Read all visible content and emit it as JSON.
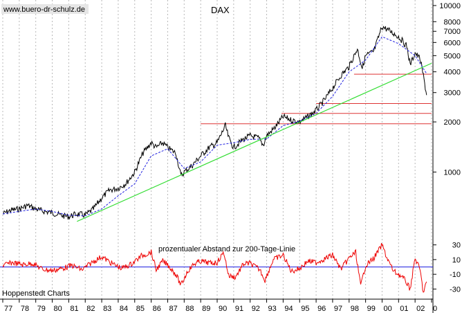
{
  "watermark": "www.buero-dr-schulz.de",
  "credit": "Hoppenstedt Charts",
  "chart_data": [
    {
      "type": "line",
      "title": "DAX",
      "yscale": "log",
      "ylim": [
        420,
        10000
      ],
      "y_tick_labels": [
        "10000",
        "8000",
        "7000",
        "6000",
        "5000",
        "4000",
        "3000",
        "2000",
        "1000"
      ],
      "y_ticks": [
        10000,
        8000,
        7000,
        6000,
        5000,
        4000,
        3000,
        2000,
        1000
      ],
      "grid": "vertical dotted at each year",
      "series": [
        {
          "kind": "price",
          "color": "#000000",
          "x": [
            1977.0,
            1977.5,
            1978.0,
            1978.5,
            1979.0,
            1979.5,
            1980.0,
            1980.5,
            1981.0,
            1981.5,
            1982.0,
            1982.5,
            1983.0,
            1983.5,
            1984.0,
            1984.5,
            1985.0,
            1985.5,
            1986.0,
            1986.3,
            1986.7,
            1987.0,
            1987.5,
            1987.8,
            1988.0,
            1988.5,
            1989.0,
            1989.5,
            1990.0,
            1990.5,
            1990.7,
            1991.0,
            1991.5,
            1992.0,
            1992.5,
            1992.8,
            1993.0,
            1993.5,
            1994.0,
            1994.5,
            1995.0,
            1995.5,
            1996.0,
            1996.5,
            1997.0,
            1997.5,
            1998.0,
            1998.5,
            1998.8,
            1999.0,
            1999.5,
            2000.0,
            2000.5,
            2001.0,
            2001.5,
            2001.7,
            2002.0,
            2002.3,
            2002.5,
            2002.7
          ],
          "values": [
            560,
            590,
            600,
            630,
            600,
            580,
            570,
            550,
            540,
            560,
            550,
            600,
            700,
            780,
            800,
            860,
            1000,
            1300,
            1500,
            1400,
            1500,
            1400,
            1300,
            950,
            1000,
            1100,
            1250,
            1400,
            1500,
            1900,
            1600,
            1400,
            1550,
            1650,
            1600,
            1450,
            1650,
            1850,
            2150,
            2050,
            2000,
            2150,
            2350,
            2700,
            3200,
            3800,
            4300,
            5500,
            4200,
            5000,
            5300,
            7500,
            7000,
            6500,
            5700,
            4400,
            5200,
            4800,
            3800,
            2900
          ]
        },
        {
          "kind": "moving average 200",
          "color": "#1e1ee0",
          "style": "dashed",
          "x": [
            1977.0,
            1978.0,
            1979.0,
            1980.0,
            1981.0,
            1982.0,
            1983.0,
            1984.0,
            1985.0,
            1986.0,
            1987.0,
            1988.0,
            1989.0,
            1990.0,
            1991.0,
            1992.0,
            1993.0,
            1994.0,
            1995.0,
            1996.0,
            1997.0,
            1998.0,
            1999.0,
            2000.0,
            2001.0,
            2002.0,
            2002.7
          ],
          "values": [
            560,
            580,
            600,
            580,
            550,
            545,
            600,
            720,
            850,
            1250,
            1380,
            1050,
            1150,
            1450,
            1500,
            1570,
            1580,
            1900,
            2020,
            2250,
            2850,
            4000,
            4700,
            6500,
            5900,
            5000,
            3900
          ]
        },
        {
          "kind": "trend line",
          "color": "#33dd33",
          "x": [
            1981.5,
            2003.0
          ],
          "values": [
            505,
            4500
          ]
        }
      ],
      "horizontal_lines": {
        "color": "#dd3333",
        "levels": [
          {
            "value": 3870,
            "x_from": 1998.3,
            "x_to": 2003.0
          },
          {
            "value": 2580,
            "x_from": 1996.0,
            "x_to": 2003.0
          },
          {
            "value": 2250,
            "x_from": 1993.9,
            "x_to": 2003.0
          },
          {
            "value": 1950,
            "x_from": 1989.0,
            "x_to": 2003.0
          }
        ]
      }
    },
    {
      "type": "line",
      "annotation": "prozentualer Abstand zur 200-Tage-Linie",
      "ylim": [
        -40,
        40
      ],
      "y_tick_labels": [
        "30",
        "10",
        "-10",
        "-30"
      ],
      "y_ticks": [
        30,
        10,
        -10,
        -30
      ],
      "zero_line": {
        "value": 0,
        "color": "#1e1ee0"
      },
      "series": [
        {
          "kind": "percent distance to 200-day line",
          "color": "#ee0000",
          "x": [
            1977.0,
            1977.6,
            1978.2,
            1978.8,
            1979.4,
            1980.0,
            1980.6,
            1981.2,
            1981.8,
            1982.4,
            1983.0,
            1983.6,
            1984.2,
            1984.8,
            1985.4,
            1986.0,
            1986.3,
            1986.7,
            1987.0,
            1987.5,
            1987.8,
            1988.2,
            1988.6,
            1989.0,
            1989.6,
            1990.0,
            1990.4,
            1990.7,
            1991.1,
            1991.6,
            1992.0,
            1992.6,
            1992.9,
            1993.4,
            1994.0,
            1994.5,
            1995.0,
            1995.5,
            1996.0,
            1996.6,
            1997.0,
            1997.5,
            1998.0,
            1998.4,
            1998.7,
            1999.0,
            1999.5,
            2000.0,
            2000.3,
            2000.7,
            2001.0,
            2001.4,
            2001.7,
            2002.0,
            2002.3,
            2002.5,
            2002.7
          ],
          "values": [
            2,
            6,
            3,
            5,
            -3,
            -5,
            -2,
            2,
            -4,
            6,
            14,
            5,
            -2,
            4,
            15,
            20,
            -4,
            8,
            3,
            -10,
            -25,
            -6,
            4,
            8,
            5,
            6,
            20,
            -12,
            -14,
            4,
            5,
            -4,
            -18,
            10,
            16,
            -6,
            -2,
            8,
            6,
            12,
            16,
            -3,
            12,
            20,
            -26,
            2,
            12,
            30,
            12,
            -6,
            -10,
            -18,
            -30,
            12,
            -4,
            -35,
            -20
          ]
        }
      ]
    }
  ],
  "x_tick_labels": [
    "77",
    "78",
    "79",
    "80",
    "81",
    "82",
    "83",
    "84",
    "85",
    "86",
    "87",
    "88",
    "89",
    "90",
    "91",
    "92",
    "93",
    "94",
    "95",
    "96",
    "97",
    "98",
    "99",
    "00",
    "01",
    "02",
    "0"
  ],
  "x_years": [
    1977,
    1978,
    1979,
    1980,
    1981,
    1982,
    1983,
    1984,
    1985,
    1986,
    1987,
    1988,
    1989,
    1990,
    1991,
    1992,
    1993,
    1994,
    1995,
    1996,
    1997,
    1998,
    1999,
    2000,
    2001,
    2002,
    2003
  ]
}
